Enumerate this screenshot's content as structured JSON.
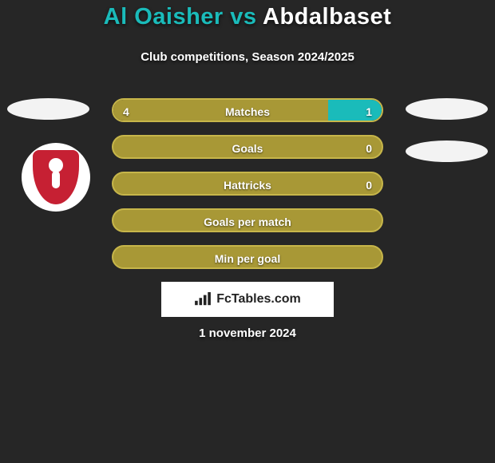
{
  "colors": {
    "page_bg": "#262626",
    "olive": "#a89836",
    "olive_border": "#c7b64a",
    "teal": "#1abbba",
    "white": "#ffffff",
    "badge_bg": "#f3f3f3",
    "brand_bg": "#ffffff",
    "shield": "#c62033"
  },
  "title": {
    "player1": "Al Oaisher",
    "vs": " vs ",
    "player2": "Abdalbaset"
  },
  "subtitle": "Club competitions, Season 2024/2025",
  "bars": [
    {
      "label": "Matches",
      "left": "4",
      "right": "1",
      "left_pct": 80,
      "right_pct": 20,
      "fill_side": "both"
    },
    {
      "label": "Goals",
      "left": "",
      "right": "0",
      "left_pct": 100,
      "right_pct": 0,
      "fill_side": "left-outline"
    },
    {
      "label": "Hattricks",
      "left": "",
      "right": "0",
      "left_pct": 100,
      "right_pct": 0,
      "fill_side": "left-outline"
    },
    {
      "label": "Goals per match",
      "left": "",
      "right": "",
      "left_pct": 100,
      "right_pct": 0,
      "fill_side": "left-outline"
    },
    {
      "label": "Min per goal",
      "left": "",
      "right": "",
      "left_pct": 100,
      "right_pct": 0,
      "fill_side": "left-outline"
    }
  ],
  "brand": "FcTables.com",
  "date": "1 november 2024"
}
